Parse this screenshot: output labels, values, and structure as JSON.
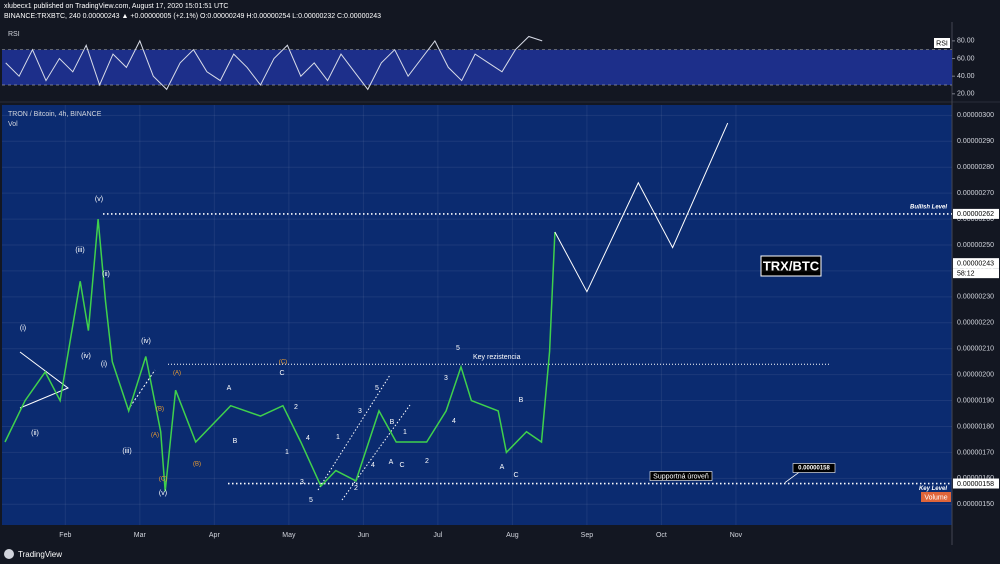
{
  "header": {
    "line1": "xlubecx1 published on TradingView.com, August 17, 2020 15:01:51 UTC",
    "line2": "BINANCE:TRXBTC, 240  0.00000243 ▲ +0.00000005 (+2.1%) O:0.00000249 H:0.00000254 L:0.00000232 C:0.00000243"
  },
  "footer": {
    "brand": "TradingView"
  },
  "chart_data": [
    {
      "type": "line",
      "title": "RSI",
      "xlim": [
        1.15,
        13.9
      ],
      "ylim": [
        13,
        98
      ],
      "yticks": [
        {
          "value": 20,
          "label": "20.00"
        },
        {
          "value": 40,
          "label": "40.00"
        },
        {
          "value": 60,
          "label": "60.00"
        },
        {
          "value": 80,
          "label": "80.00"
        }
      ],
      "band": [
        30,
        70
      ],
      "band_color": "#1d2f8a",
      "color": "#d8dce8",
      "x": [
        1.2,
        1.38,
        1.56,
        1.74,
        1.92,
        2.1,
        2.28,
        2.46,
        2.64,
        2.82,
        3.0,
        3.18,
        3.36,
        3.54,
        3.72,
        3.9,
        4.08,
        4.26,
        4.44,
        4.62,
        4.8,
        4.98,
        5.16,
        5.34,
        5.52,
        5.7,
        5.88,
        6.06,
        6.24,
        6.42,
        6.6,
        6.78,
        6.96,
        7.14,
        7.32,
        7.5,
        7.68,
        7.86,
        8.04,
        8.22,
        8.4
      ],
      "values": [
        55,
        40,
        70,
        35,
        60,
        45,
        75,
        30,
        65,
        50,
        80,
        40,
        25,
        55,
        70,
        45,
        35,
        65,
        50,
        30,
        60,
        75,
        40,
        55,
        35,
        65,
        45,
        25,
        55,
        70,
        40,
        60,
        80,
        50,
        35,
        65,
        55,
        45,
        70,
        85,
        80
      ]
    },
    {
      "type": "line",
      "title": "TRON / Bitcoin, 4h, BINANCE",
      "subtitle": "Vol",
      "badge": "TRX/BTC",
      "volume_label": "Volume",
      "grid": true,
      "xlim": [
        1.15,
        13.9
      ],
      "xticks": [
        {
          "value": 2,
          "label": "Feb"
        },
        {
          "value": 3,
          "label": "Mar"
        },
        {
          "value": 4,
          "label": "Apr"
        },
        {
          "value": 5,
          "label": "May"
        },
        {
          "value": 6,
          "label": "Jun"
        },
        {
          "value": 7,
          "label": "Jul"
        },
        {
          "value": 8,
          "label": "Aug"
        },
        {
          "value": 9,
          "label": "Sep"
        },
        {
          "value": 10,
          "label": "Oct"
        },
        {
          "value": 11,
          "label": "Nov"
        }
      ],
      "ylim": [
        1.42e-06,
        3.04e-06
      ],
      "yticks": [
        {
          "value": 1.5e-06,
          "label": "0.00000150"
        },
        {
          "value": 1.6e-06,
          "label": "0.00000160"
        },
        {
          "value": 1.7e-06,
          "label": "0.00000170"
        },
        {
          "value": 1.8e-06,
          "label": "0.00000180"
        },
        {
          "value": 1.9e-06,
          "label": "0.00000190"
        },
        {
          "value": 2e-06,
          "label": "0.00000200"
        },
        {
          "value": 2.1e-06,
          "label": "0.00000210"
        },
        {
          "value": 2.2e-06,
          "label": "0.00000220"
        },
        {
          "value": 2.3e-06,
          "label": "0.00000230"
        },
        {
          "value": 2.4e-06,
          "label": "0.00000240"
        },
        {
          "value": 2.5e-06,
          "label": "0.00000250"
        },
        {
          "value": 2.6e-06,
          "label": "0.00000260"
        },
        {
          "value": 2.7e-06,
          "label": "0.00000270"
        },
        {
          "value": 2.8e-06,
          "label": "0.00000280"
        },
        {
          "value": 2.9e-06,
          "label": "0.00000290"
        },
        {
          "value": 3e-06,
          "label": "0.00000300"
        }
      ],
      "series": [
        {
          "color": "#3fd14c",
          "x": [
            1.19,
            1.46,
            1.73,
            1.93,
            2.2,
            2.31,
            2.44,
            2.54,
            2.63,
            2.85,
            3.08,
            3.28,
            3.34,
            3.48,
            3.75,
            4.22,
            4.62,
            4.92,
            5.16,
            5.43,
            5.63,
            5.9,
            6.21,
            6.44,
            6.85,
            7.11,
            7.31,
            7.45,
            7.81,
            7.92,
            8.19,
            8.39,
            8.5,
            8.57
          ],
          "values": [
            1.74e-06,
            1.9e-06,
            2.01e-06,
            1.9e-06,
            2.36e-06,
            2.17e-06,
            2.6e-06,
            2.28e-06,
            2.05e-06,
            1.86e-06,
            2.07e-06,
            1.78e-06,
            1.55e-06,
            1.94e-06,
            1.74e-06,
            1.88e-06,
            1.84e-06,
            1.88e-06,
            1.74e-06,
            1.57e-06,
            1.63e-06,
            1.59e-06,
            1.86e-06,
            1.74e-06,
            1.74e-06,
            1.86e-06,
            2.03e-06,
            1.9e-06,
            1.86e-06,
            1.7e-06,
            1.78e-06,
            1.74e-06,
            2.09e-06,
            2.55e-06
          ]
        },
        {
          "color": "#ffffff",
          "x": [
            8.57,
            9.0,
            9.69,
            10.15,
            10.89
          ],
          "values": [
            2.55e-06,
            2.32e-06,
            2.74e-06,
            2.49e-06,
            2.97e-06
          ]
        }
      ],
      "levels": [
        {
          "name": "Bullish Level",
          "value": 2.62e-06,
          "label": "0.00000262"
        },
        {
          "name": "Key rezistencia",
          "value": 2.04e-06
        },
        {
          "name": "Supportná úroveň",
          "value": 1.58e-06,
          "label": "0.00000158",
          "note": "Key Level"
        }
      ],
      "last_price": {
        "value": 2.43e-06,
        "label": "0.00000243",
        "timer": "58:12"
      },
      "wave_labels": [
        "(v)",
        "(iii)",
        "(ii)",
        "(iv)",
        "(i)",
        "(ii)",
        "(iv)",
        "(i)",
        "(iii)",
        "(v)",
        "A",
        "B",
        "C",
        "1",
        "2",
        "3",
        "4",
        "5",
        "1",
        "2",
        "3",
        "4",
        "5",
        "A",
        "B",
        "C",
        "1",
        "2",
        "3",
        "4",
        "5",
        "A",
        "B",
        "C"
      ],
      "correction_labels": [
        "(C)",
        "(A)",
        "(B)",
        "(C)",
        "(A)",
        "(B)"
      ]
    }
  ]
}
